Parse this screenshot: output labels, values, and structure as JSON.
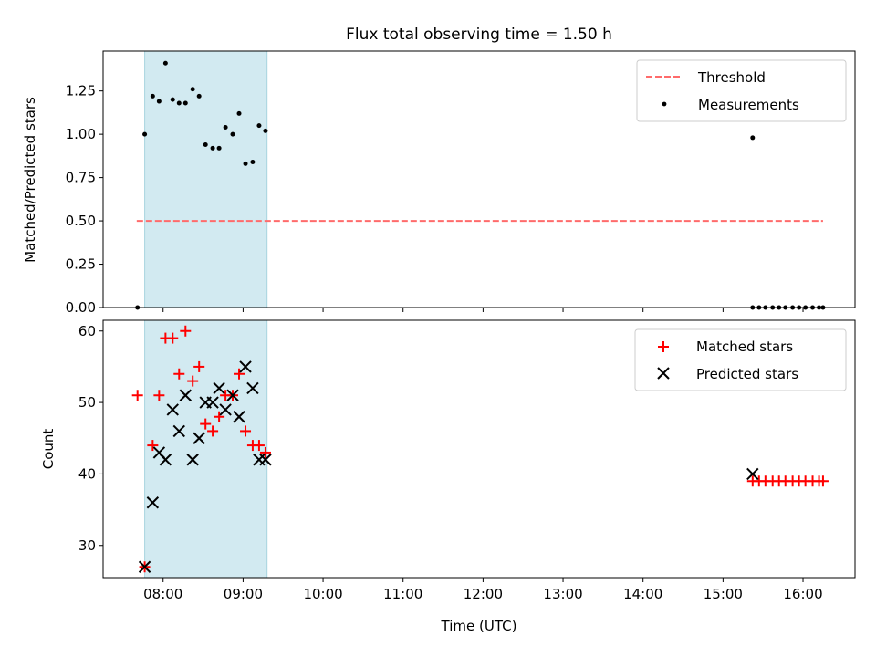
{
  "chart_data": [
    {
      "type": "scatter",
      "title": "Flux total observing time = 1.50 h",
      "xlabel": "",
      "ylabel": "Matched/Predicted stars",
      "ylim": [
        0,
        1.48
      ],
      "xlim_hours": [
        7.25,
        16.65
      ],
      "yticks": [
        0,
        0.25,
        0.5,
        0.75,
        1.0,
        1.25
      ],
      "ytick_labels": [
        "0.00",
        "0.25",
        "0.50",
        "0.75",
        "1.00",
        "1.25"
      ],
      "highlight_span_hours": [
        7.77,
        9.3
      ],
      "highlight_color": "#add8e6",
      "legend_position": "upper-right",
      "threshold": {
        "name": "Threshold",
        "value": 0.5,
        "x_range_hours": [
          7.67,
          16.25
        ],
        "color": "#ff6b6b"
      },
      "series": [
        {
          "name": "Measurements",
          "color": "#000000",
          "marker": "dot",
          "x": [
            7.68,
            7.77,
            7.87,
            7.95,
            8.03,
            8.12,
            8.2,
            8.28,
            8.37,
            8.45,
            8.53,
            8.62,
            8.7,
            8.78,
            8.87,
            8.95,
            9.03,
            9.12,
            9.2,
            9.28,
            15.37,
            15.37,
            15.45,
            15.53,
            15.62,
            15.7,
            15.78,
            15.87,
            15.95,
            16.03,
            16.12,
            16.2,
            16.25
          ],
          "y": [
            0.0,
            1.0,
            1.22,
            1.19,
            1.41,
            1.2,
            1.18,
            1.18,
            1.26,
            1.22,
            0.94,
            0.92,
            0.92,
            1.04,
            1.0,
            1.12,
            0.83,
            0.84,
            1.05,
            1.02,
            0.98,
            0.0,
            0.0,
            0.0,
            0.0,
            0.0,
            0.0,
            0.0,
            0.0,
            0.0,
            0.0,
            0.0,
            0.0
          ]
        }
      ]
    },
    {
      "type": "scatter",
      "title": "",
      "xlabel": "Time (UTC)",
      "ylabel": "Count",
      "ylim": [
        25.5,
        61.5
      ],
      "xlim_hours": [
        7.25,
        16.65
      ],
      "yticks": [
        30,
        40,
        50,
        60
      ],
      "ytick_labels": [
        "30",
        "40",
        "50",
        "60"
      ],
      "xticks_hours": [
        8,
        9,
        10,
        11,
        12,
        13,
        14,
        15,
        16
      ],
      "xtick_labels": [
        "08:00",
        "09:00",
        "10:00",
        "11:00",
        "12:00",
        "13:00",
        "14:00",
        "15:00",
        "16:00"
      ],
      "highlight_span_hours": [
        7.77,
        9.3
      ],
      "highlight_color": "#add8e6",
      "legend_position": "upper-right",
      "series": [
        {
          "name": "Matched stars",
          "color": "#ff0000",
          "marker": "plus",
          "x": [
            7.68,
            7.77,
            7.87,
            7.95,
            8.03,
            8.12,
            8.2,
            8.28,
            8.37,
            8.45,
            8.53,
            8.62,
            8.7,
            8.78,
            8.87,
            8.95,
            9.03,
            9.12,
            9.2,
            9.28,
            15.37,
            15.45,
            15.53,
            15.62,
            15.7,
            15.78,
            15.87,
            15.95,
            16.03,
            16.12,
            16.2,
            16.25
          ],
          "y": [
            51,
            27,
            44,
            51,
            59,
            59,
            54,
            60,
            53,
            55,
            47,
            46,
            48,
            51,
            51,
            54,
            46,
            44,
            44,
            43,
            39,
            39,
            39,
            39,
            39,
            39,
            39,
            39,
            39,
            39,
            39,
            39
          ]
        },
        {
          "name": "Predicted stars",
          "color": "#000000",
          "marker": "x",
          "x": [
            7.77,
            7.87,
            7.95,
            8.03,
            8.12,
            8.2,
            8.28,
            8.37,
            8.45,
            8.53,
            8.62,
            8.7,
            8.78,
            8.87,
            8.95,
            9.03,
            9.12,
            9.2,
            9.28,
            15.37
          ],
          "y": [
            27,
            36,
            43,
            42,
            49,
            46,
            51,
            42,
            45,
            50,
            50,
            52,
            49,
            51,
            48,
            55,
            52,
            42,
            42,
            40
          ]
        }
      ]
    }
  ]
}
